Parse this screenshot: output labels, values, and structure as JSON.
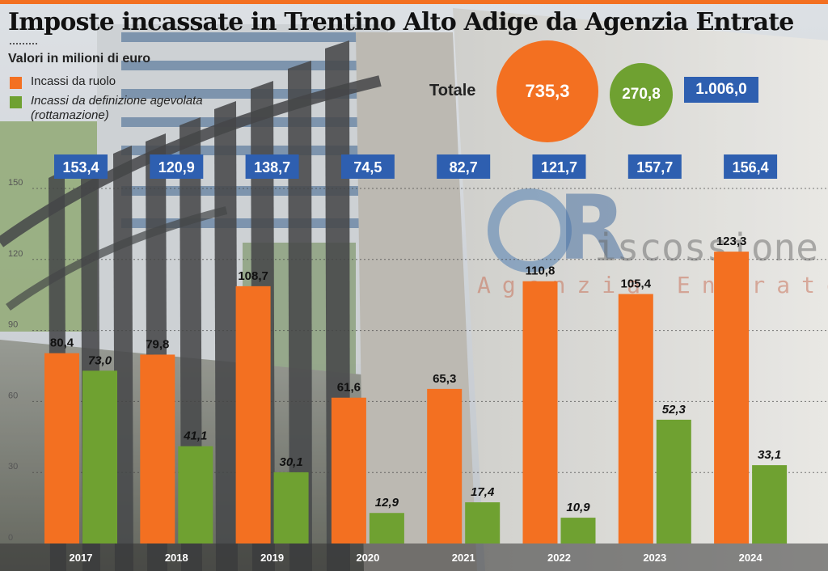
{
  "header": {
    "title": "Imposte incassate in Trentino Alto Adige da Agenzia Entrate",
    "subtitle": "Valori in milioni di euro"
  },
  "legend": {
    "items": [
      {
        "label": "Incassi da ruolo",
        "color": "#f37021"
      },
      {
        "label": "Incassi da definizione agevolata (rottamazione)",
        "color": "#6fa131"
      }
    ]
  },
  "totals": {
    "label": "Totale",
    "ruolo": "735,3",
    "rottamazione": "270,8",
    "overall": "1.006,0"
  },
  "background": {
    "sign_word_1": "iscossione",
    "sign_word_2": "Agenzia Entrate"
  },
  "chart_data": {
    "type": "bar",
    "categories": [
      "2017",
      "2018",
      "2019",
      "2020",
      "2021",
      "2022",
      "2023",
      "2024"
    ],
    "series": [
      {
        "name": "Incassi da ruolo",
        "color": "#f37021",
        "values": [
          80.4,
          79.8,
          108.7,
          61.6,
          65.3,
          110.8,
          105.4,
          123.3
        ],
        "labels": [
          "80,4",
          "79,8",
          "108,7",
          "61,6",
          "65,3",
          "110,8",
          "105,4",
          "123,3"
        ]
      },
      {
        "name": "Incassi da definizione agevolata (rottamazione)",
        "color": "#6fa131",
        "values": [
          73.0,
          41.1,
          30.1,
          12.9,
          17.4,
          10.9,
          52.3,
          33.1
        ],
        "labels": [
          "73,0",
          "41,1",
          "30,1",
          "12,9",
          "17,4",
          "10,9",
          "52,3",
          "33,1"
        ]
      }
    ],
    "year_totals": [
      "153,4",
      "120,9",
      "138,7",
      "74,5",
      "82,7",
      "121,7",
      "157,7",
      "156,4"
    ],
    "yticks": [
      0,
      30,
      60,
      90,
      120,
      150
    ],
    "ylim": [
      0,
      150
    ],
    "grid": true,
    "total_box_color": "#2e5fb0"
  }
}
